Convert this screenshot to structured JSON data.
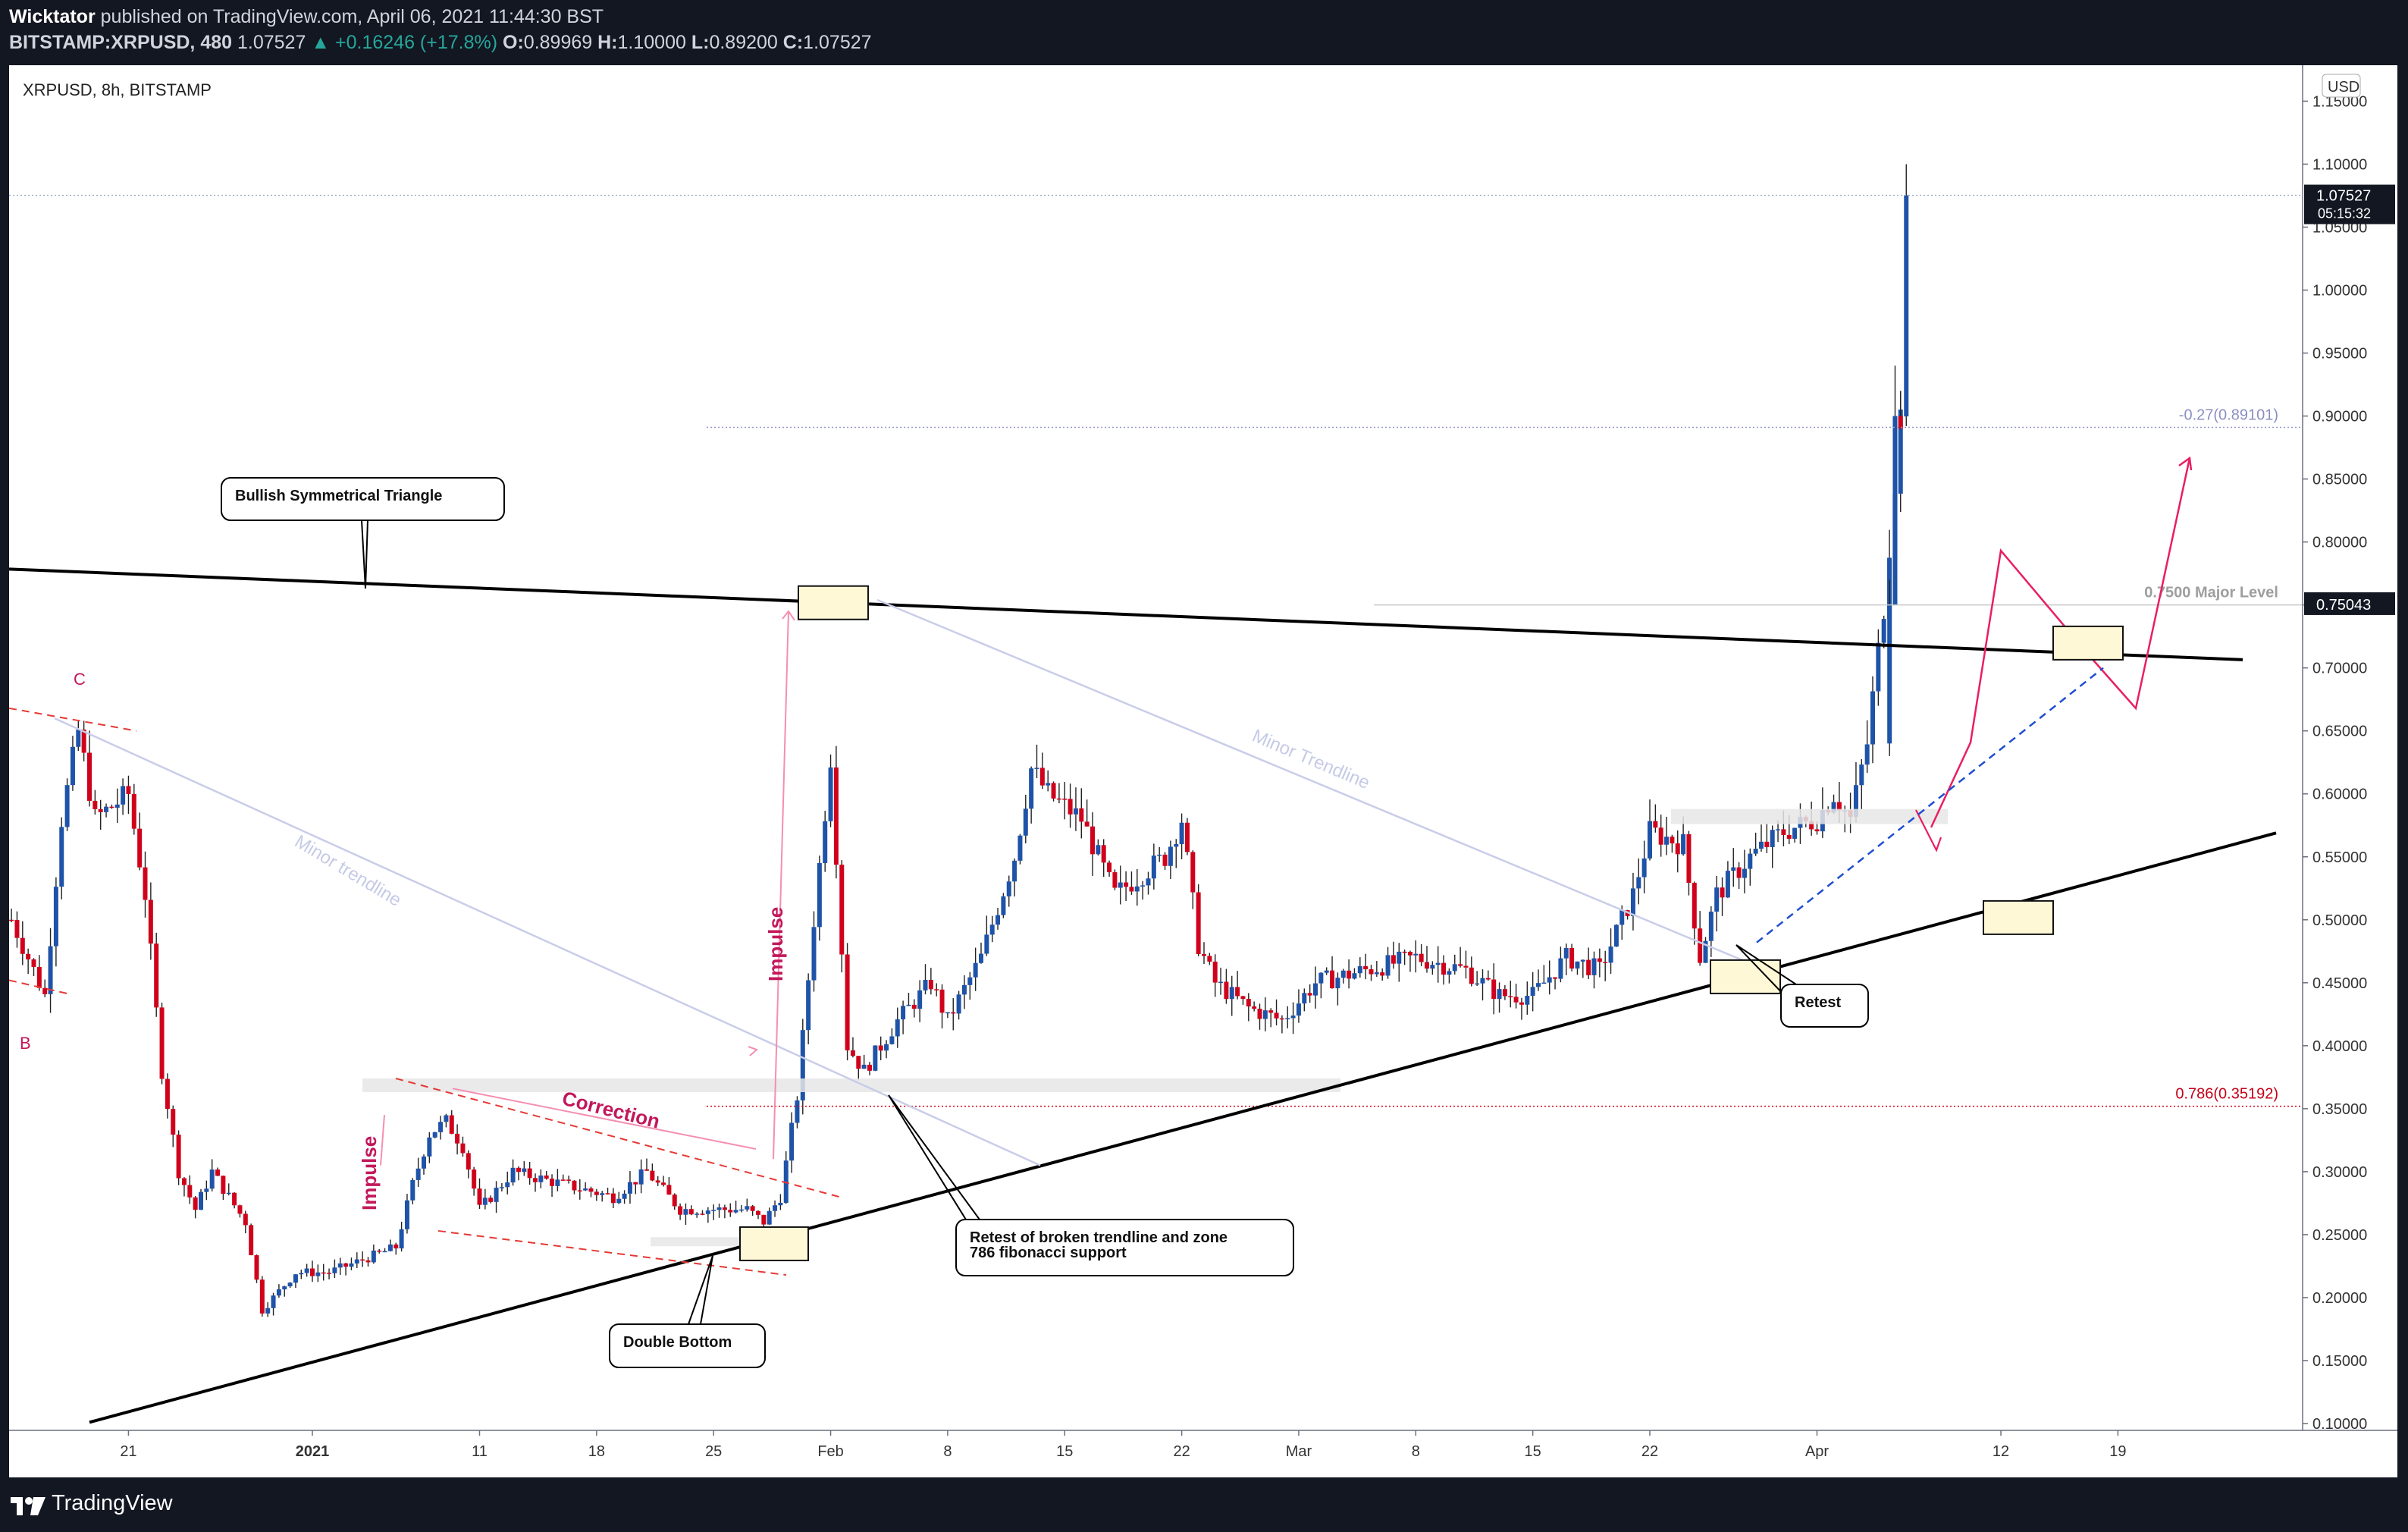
{
  "header": {
    "author": "Wicktator",
    "published_text": "published on TradingView.com, April 06, 2021 11:44:30 BST",
    "symbol_line": "BITSTAMP:XRPUSD, 480",
    "last": "1.07527",
    "change": "▲ +0.16246 (+17.8%)",
    "o_label": "O:",
    "o": "0.89969",
    "h_label": "H:",
    "h": "1.10000",
    "l_label": "L:",
    "l": "0.89200",
    "c_label": "C:",
    "c": "1.07527"
  },
  "footer": {
    "brand": "TradingView"
  },
  "colors": {
    "up": "#1e53a8",
    "down": "#d0021b",
    "accent": "#c2185b",
    "frame": "#131722"
  },
  "chart_data": {
    "type": "candlestick",
    "title": "XRPUSD, 8h, BITSTAMP",
    "currency": "USD",
    "ylim": [
      0.1,
      1.16
    ],
    "y_ticks": [
      "1.15000",
      "1.10000",
      "1.05000",
      "1.00000",
      "0.95000",
      "0.90000",
      "0.85000",
      "0.80000",
      "0.75000",
      "0.70000",
      "0.65000",
      "0.60000",
      "0.55000",
      "0.50000",
      "0.45000",
      "0.40000",
      "0.35000",
      "0.30000",
      "0.25000",
      "0.20000",
      "0.15000",
      "0.10000"
    ],
    "x_ticks": [
      {
        "label": "21",
        "date": "2020-12-21"
      },
      {
        "label": "2021",
        "date": "2021-01-01",
        "bold": true
      },
      {
        "label": "11",
        "date": "2021-01-11"
      },
      {
        "label": "18",
        "date": "2021-01-18"
      },
      {
        "label": "25",
        "date": "2021-01-25"
      },
      {
        "label": "Feb",
        "date": "2021-02-01"
      },
      {
        "label": "8",
        "date": "2021-02-08"
      },
      {
        "label": "15",
        "date": "2021-02-15"
      },
      {
        "label": "22",
        "date": "2021-02-22"
      },
      {
        "label": "Mar",
        "date": "2021-03-01"
      },
      {
        "label": "8",
        "date": "2021-03-08"
      },
      {
        "label": "15",
        "date": "2021-03-15"
      },
      {
        "label": "22",
        "date": "2021-03-22"
      },
      {
        "label": "Apr",
        "date": "2021-04-01"
      },
      {
        "label": "12",
        "date": "2021-04-12"
      },
      {
        "label": "19",
        "date": "2021-04-19"
      }
    ],
    "price_path": [
      [
        "2020-12-14",
        0.5
      ],
      [
        "2020-12-16",
        0.44
      ],
      [
        "2020-12-17",
        0.58
      ],
      [
        "2020-12-18",
        0.65
      ],
      [
        "2020-12-19",
        0.58
      ],
      [
        "2020-12-21",
        0.6
      ],
      [
        "2020-12-22",
        0.52
      ],
      [
        "2020-12-23",
        0.38
      ],
      [
        "2020-12-24",
        0.3
      ],
      [
        "2020-12-25",
        0.27
      ],
      [
        "2020-12-26",
        0.3
      ],
      [
        "2020-12-28",
        0.26
      ],
      [
        "2020-12-29",
        0.19
      ],
      [
        "2020-12-31",
        0.22
      ],
      [
        "2021-01-02",
        0.22
      ],
      [
        "2021-01-04",
        0.23
      ],
      [
        "2021-01-06",
        0.24
      ],
      [
        "2021-01-07",
        0.29
      ],
      [
        "2021-01-08",
        0.33
      ],
      [
        "2021-01-09",
        0.34
      ],
      [
        "2021-01-10",
        0.32
      ],
      [
        "2021-01-11",
        0.27
      ],
      [
        "2021-01-13",
        0.3
      ],
      [
        "2021-01-16",
        0.29
      ],
      [
        "2021-01-19",
        0.28
      ],
      [
        "2021-01-21",
        0.3
      ],
      [
        "2021-01-23",
        0.27
      ],
      [
        "2021-01-25",
        0.27
      ],
      [
        "2021-01-27",
        0.27
      ],
      [
        "2021-01-28",
        0.26
      ],
      [
        "2021-01-29",
        0.28
      ],
      [
        "2021-01-30",
        0.36
      ],
      [
        "2021-01-31",
        0.5
      ],
      [
        "2021-02-01",
        0.63
      ],
      [
        "2021-02-02",
        0.4
      ],
      [
        "2021-02-03",
        0.38
      ],
      [
        "2021-02-05",
        0.42
      ],
      [
        "2021-02-07",
        0.45
      ],
      [
        "2021-02-08",
        0.42
      ],
      [
        "2021-02-10",
        0.47
      ],
      [
        "2021-02-12",
        0.55
      ],
      [
        "2021-02-13",
        0.62
      ],
      [
        "2021-02-14",
        0.6
      ],
      [
        "2021-02-16",
        0.58
      ],
      [
        "2021-02-18",
        0.52
      ],
      [
        "2021-02-21",
        0.55
      ],
      [
        "2021-02-22",
        0.58
      ],
      [
        "2021-02-23",
        0.48
      ],
      [
        "2021-02-24",
        0.45
      ],
      [
        "2021-02-26",
        0.43
      ],
      [
        "2021-02-28",
        0.42
      ],
      [
        "2021-03-02",
        0.45
      ],
      [
        "2021-03-05",
        0.46
      ],
      [
        "2021-03-08",
        0.47
      ],
      [
        "2021-03-11",
        0.46
      ],
      [
        "2021-03-13",
        0.44
      ],
      [
        "2021-03-15",
        0.44
      ],
      [
        "2021-03-17",
        0.47
      ],
      [
        "2021-03-19",
        0.46
      ],
      [
        "2021-03-21",
        0.52
      ],
      [
        "2021-03-22",
        0.57
      ],
      [
        "2021-03-24",
        0.56
      ],
      [
        "2021-03-25",
        0.47
      ],
      [
        "2021-03-26",
        0.52
      ],
      [
        "2021-03-28",
        0.55
      ],
      [
        "2021-03-30",
        0.57
      ],
      [
        "2021-04-01",
        0.58
      ],
      [
        "2021-04-02",
        0.6
      ],
      [
        "2021-04-03",
        0.58
      ],
      [
        "2021-04-04",
        0.64
      ],
      [
        "2021-04-05",
        0.75
      ],
      [
        "2021-04-06",
        0.9
      ],
      [
        "2021-04-06.5",
        1.07527
      ]
    ],
    "last_price": 1.07527,
    "countdown": "05:15:32",
    "high_marker": 0.75043,
    "fib_levels": [
      {
        "label": "-0.27(0.89101)",
        "value": 0.89101
      },
      {
        "label": "0.786(0.35192)",
        "value": 0.35192
      }
    ],
    "major_level": {
      "label": "0.7500 Major Level",
      "value": 0.75
    },
    "annotations": {
      "triangle": "Bullish Symmetrical Triangle",
      "retest_zone": "Retest of broken trendline and zone",
      "retest_zone_2": "786 fibonacci support",
      "double_bottom": "Double Bottom",
      "retest": "Retest",
      "minor_trendline_1": "Minor trendline",
      "minor_trendline_2": "Minor Trendline",
      "impulse_1": "Impulse",
      "impulse_2": "Impulse",
      "correction": "Correction",
      "point_c": "C",
      "point_b": "B"
    }
  }
}
